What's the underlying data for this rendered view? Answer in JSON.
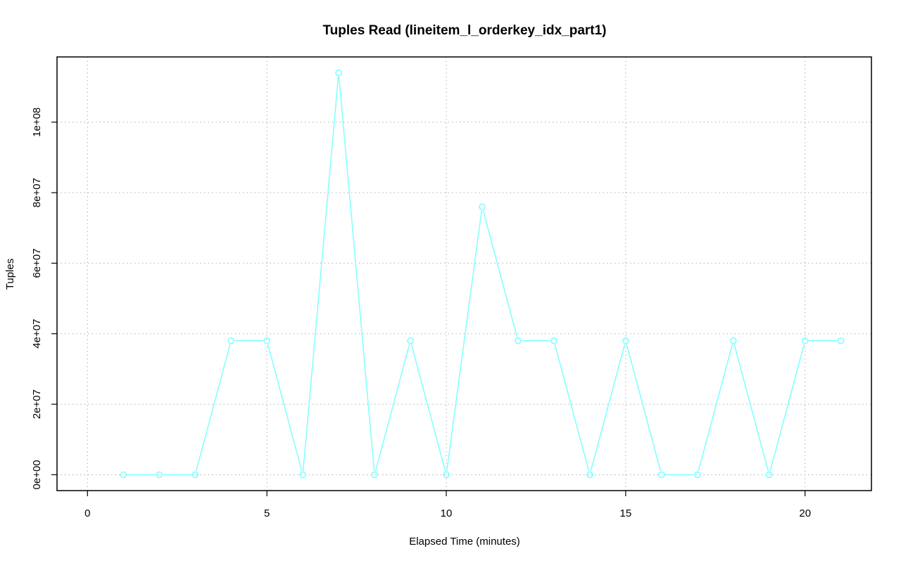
{
  "chart_data": {
    "type": "line",
    "title": "Tuples Read (lineitem_l_orderkey_idx_part1)",
    "xlabel": "Elapsed Time (minutes)",
    "ylabel": "Tuples",
    "xlim": [
      -0.85,
      21.85
    ],
    "ylim": [
      -4500000,
      118500000
    ],
    "x_ticks": [
      0,
      5,
      10,
      15,
      20
    ],
    "x_tick_labels": [
      "0",
      "5",
      "10",
      "15",
      "20"
    ],
    "y_ticks": [
      0,
      20000000,
      40000000,
      60000000,
      80000000,
      100000000
    ],
    "y_tick_labels": [
      "0e+00",
      "2e+07",
      "4e+07",
      "6e+07",
      "8e+07",
      "1e+08"
    ],
    "grid": true,
    "grid_color": "#c0c0c0",
    "series_color": "#80ffff",
    "series": [
      {
        "x": [
          1,
          2,
          3,
          4,
          5,
          6,
          7,
          8,
          9,
          10,
          11,
          12,
          13,
          14,
          15,
          16,
          17,
          18,
          19,
          20,
          21
        ],
        "values": [
          0,
          0,
          0,
          38000000,
          38000000,
          0,
          114000000,
          0,
          38000000,
          0,
          76000000,
          38000000,
          38000000,
          0,
          38000000,
          0,
          0,
          38000000,
          0,
          38000000,
          38000000
        ]
      }
    ]
  }
}
